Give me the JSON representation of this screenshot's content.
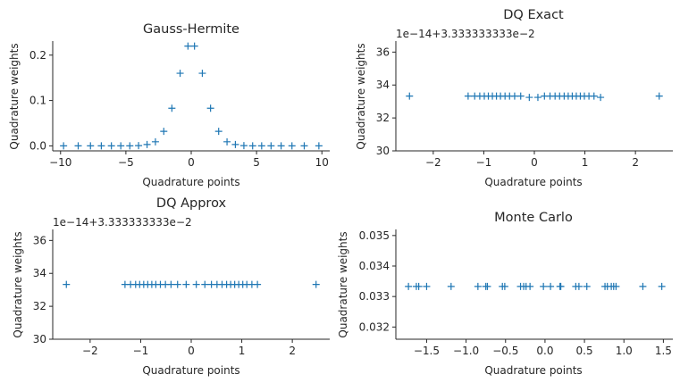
{
  "chart_data": [
    {
      "type": "scatter",
      "title": "Gauss-Hermite",
      "xlabel": "Quadrature points",
      "ylabel": "Quadrature weights",
      "offset_text": "",
      "xlim": [
        -10.6,
        10.6
      ],
      "ylim": [
        -0.011,
        0.231
      ],
      "xticks": [
        -10,
        -5,
        0,
        5,
        10
      ],
      "xtick_labels": [
        "−10",
        "−5",
        "0",
        "5",
        "10"
      ],
      "yticks": [
        0.0,
        0.1,
        0.2
      ],
      "ytick_labels": [
        "0.0",
        "0.1",
        "0.2"
      ],
      "marker": "+",
      "color": "#1f77b4",
      "grid": false,
      "x": [
        -9.77,
        -8.65,
        -7.71,
        -6.88,
        -6.11,
        -5.39,
        -4.7,
        -4.03,
        -3.38,
        -2.74,
        -2.1,
        -1.48,
        -0.85,
        -0.25,
        0.25,
        0.85,
        1.48,
        2.1,
        2.74,
        3.38,
        4.03,
        4.7,
        5.39,
        6.11,
        6.88,
        7.71,
        8.65,
        9.77
      ],
      "y": [
        0.0,
        0.0,
        0.0,
        0.0,
        0.0,
        0.0,
        0.0,
        0.0005,
        0.003,
        0.009,
        0.032,
        0.083,
        0.16,
        0.22,
        0.22,
        0.16,
        0.083,
        0.032,
        0.009,
        0.003,
        0.0005,
        0.0,
        0.0,
        0.0,
        0.0,
        0.0,
        0.0,
        0.0
      ]
    },
    {
      "type": "scatter",
      "title": "DQ Exact",
      "xlabel": "Quadrature points",
      "ylabel": "Quadrature weights",
      "offset_text": "1e−14+3.333333333e−2",
      "xlim": [
        -2.74,
        2.74
      ],
      "ylim": [
        30,
        36.67
      ],
      "xticks": [
        -2,
        -1,
        0,
        1,
        2
      ],
      "xtick_labels": [
        "−2",
        "−1",
        "0",
        "1",
        "2"
      ],
      "yticks": [
        30,
        32,
        34,
        36
      ],
      "ytick_labels": [
        "30",
        "32",
        "34",
        "36"
      ],
      "marker": "+",
      "color": "#1f77b4",
      "grid": false,
      "x": [
        -2.47,
        -1.31,
        -1.18,
        -1.08,
        -0.99,
        -0.91,
        -0.83,
        -0.75,
        -0.67,
        -0.58,
        -0.49,
        -0.39,
        -0.27,
        -0.1,
        0.07,
        0.2,
        0.31,
        0.41,
        0.5,
        0.59,
        0.67,
        0.75,
        0.83,
        0.91,
        0.99,
        1.08,
        1.18,
        1.31,
        2.47
      ],
      "y": [
        33.33,
        33.33,
        33.33,
        33.33,
        33.33,
        33.33,
        33.33,
        33.33,
        33.33,
        33.33,
        33.33,
        33.33,
        33.33,
        33.25,
        33.25,
        33.33,
        33.33,
        33.33,
        33.33,
        33.33,
        33.33,
        33.33,
        33.33,
        33.33,
        33.33,
        33.33,
        33.33,
        33.25,
        33.33
      ]
    },
    {
      "type": "scatter",
      "title": "DQ Approx",
      "xlabel": "Quadrature points",
      "ylabel": "Quadrature weights",
      "offset_text": "1e−14+3.333333333e−2",
      "xlim": [
        -2.74,
        2.74
      ],
      "ylim": [
        30,
        36.67
      ],
      "xticks": [
        -2,
        -1,
        0,
        1,
        2
      ],
      "xtick_labels": [
        "−2",
        "−1",
        "0",
        "1",
        "2"
      ],
      "yticks": [
        30,
        32,
        34,
        36
      ],
      "ytick_labels": [
        "30",
        "32",
        "34",
        "36"
      ],
      "marker": "+",
      "color": "#1f77b4",
      "grid": false,
      "x": [
        -2.47,
        -1.31,
        -1.2,
        -1.1,
        -1.02,
        -0.94,
        -0.86,
        -0.78,
        -0.7,
        -0.61,
        -0.51,
        -0.4,
        -0.27,
        -0.1,
        0.1,
        0.27,
        0.4,
        0.51,
        0.61,
        0.7,
        0.78,
        0.86,
        0.94,
        1.02,
        1.1,
        1.2,
        1.31,
        2.47
      ],
      "y": [
        33.33,
        33.33,
        33.33,
        33.33,
        33.33,
        33.33,
        33.33,
        33.33,
        33.33,
        33.33,
        33.33,
        33.33,
        33.33,
        33.33,
        33.33,
        33.33,
        33.33,
        33.33,
        33.33,
        33.33,
        33.33,
        33.33,
        33.33,
        33.33,
        33.33,
        33.33,
        33.33,
        33.33
      ]
    },
    {
      "type": "scatter",
      "title": "Monte Carlo",
      "xlabel": "Quadrature points",
      "ylabel": "Quadrature weights",
      "offset_text": "",
      "xlim": [
        -1.89,
        1.62
      ],
      "ylim": [
        0.0316,
        0.0352
      ],
      "xticks": [
        -1.5,
        -1.0,
        -0.5,
        0.0,
        0.5,
        1.0,
        1.5
      ],
      "xtick_labels": [
        "−1.5",
        "−1.0",
        "−0.5",
        "0.0",
        "0.5",
        "1.0",
        "1.5"
      ],
      "yticks": [
        0.032,
        0.033,
        0.034,
        0.035
      ],
      "ytick_labels": [
        "0.032",
        "0.033",
        "0.034",
        "0.035"
      ],
      "marker": "+",
      "color": "#1f77b4",
      "grid": false,
      "x": [
        -1.73,
        -1.63,
        -1.6,
        -1.5,
        -1.19,
        -0.85,
        -0.75,
        -0.73,
        -0.54,
        -0.51,
        -0.31,
        -0.27,
        -0.24,
        -0.19,
        -0.02,
        0.07,
        0.19,
        0.2,
        0.39,
        0.43,
        0.53,
        0.76,
        0.79,
        0.84,
        0.87,
        0.9,
        1.24,
        1.48
      ],
      "y": [
        0.03333,
        0.03333,
        0.03333,
        0.03333,
        0.03333,
        0.03333,
        0.03333,
        0.03333,
        0.03333,
        0.03333,
        0.03333,
        0.03333,
        0.03333,
        0.03333,
        0.03333,
        0.03333,
        0.03333,
        0.03333,
        0.03333,
        0.03333,
        0.03333,
        0.03333,
        0.03333,
        0.03333,
        0.03333,
        0.03333,
        0.03333,
        0.03333
      ]
    }
  ]
}
